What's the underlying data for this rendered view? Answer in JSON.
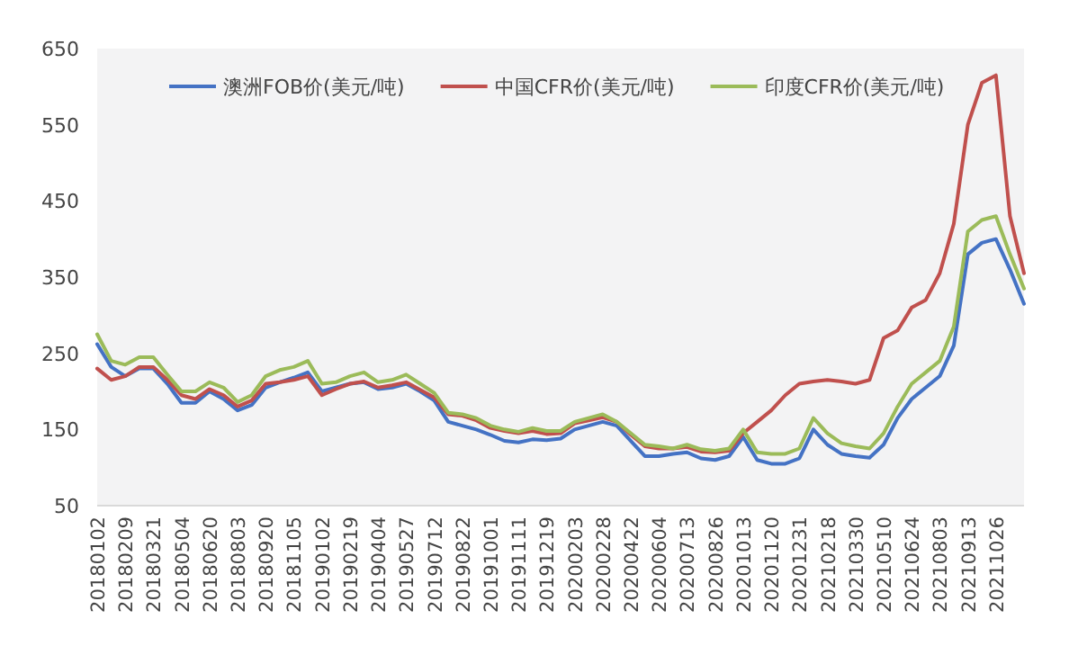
{
  "chart_data": {
    "type": "line",
    "categories": [
      "20180102",
      null,
      "20180209",
      null,
      "20180321",
      null,
      "20180504",
      null,
      "20180620",
      null,
      "20180803",
      null,
      "20180920",
      null,
      "20181105",
      null,
      "20190102",
      null,
      "20190219",
      null,
      "20190404",
      null,
      "20190527",
      null,
      "20190712",
      null,
      "20190822",
      null,
      "20191001",
      null,
      "20191111",
      null,
      "20191219",
      null,
      "20200203",
      null,
      "20200228",
      null,
      "20200422",
      null,
      "20200604",
      null,
      "20200713",
      null,
      "20200826",
      null,
      "20201013",
      null,
      "20201120",
      null,
      "20201231",
      null,
      "20210218",
      null,
      "20210330",
      null,
      "20210510",
      null,
      "20210624",
      null,
      "20210803",
      null,
      "20210913",
      null,
      "20211026",
      null,
      null
    ],
    "ylim": [
      50,
      650
    ],
    "yticks": [
      50,
      150,
      250,
      350,
      450,
      550,
      650
    ],
    "legend": "top",
    "marker": "none",
    "line_style": "solid",
    "series": [
      {
        "name": "澳洲FOB价(美元/吨)",
        "color": "#4472c4",
        "values": [
          262,
          232,
          220,
          230,
          230,
          210,
          185,
          185,
          200,
          190,
          175,
          182,
          205,
          212,
          218,
          225,
          200,
          205,
          210,
          212,
          203,
          205,
          210,
          200,
          188,
          160,
          155,
          150,
          143,
          135,
          133,
          137,
          136,
          138,
          150,
          155,
          160,
          155,
          135,
          115,
          115,
          118,
          120,
          112,
          110,
          115,
          140,
          110,
          105,
          105,
          112,
          150,
          130,
          118,
          115,
          113,
          130,
          165,
          190,
          205,
          220,
          260,
          380,
          395,
          400,
          360,
          315
        ]
      },
      {
        "name": "中国CFR价(美元/吨)",
        "color": "#c0504d",
        "values": [
          230,
          215,
          220,
          232,
          232,
          215,
          195,
          190,
          203,
          195,
          180,
          188,
          210,
          212,
          215,
          220,
          195,
          203,
          210,
          213,
          205,
          208,
          212,
          202,
          192,
          170,
          168,
          162,
          152,
          148,
          145,
          148,
          144,
          145,
          158,
          162,
          166,
          160,
          143,
          128,
          125,
          125,
          127,
          121,
          120,
          122,
          145,
          160,
          175,
          195,
          210,
          213,
          215,
          213,
          210,
          215,
          270,
          280,
          310,
          320,
          355,
          420,
          550,
          605,
          615,
          430,
          355
        ]
      },
      {
        "name": "印度CFR价(美元/吨)",
        "color": "#9bbb59",
        "values": [
          275,
          240,
          235,
          245,
          245,
          222,
          200,
          200,
          212,
          205,
          186,
          195,
          220,
          228,
          232,
          240,
          210,
          212,
          220,
          225,
          212,
          215,
          222,
          210,
          198,
          172,
          170,
          165,
          155,
          150,
          147,
          152,
          148,
          148,
          160,
          165,
          170,
          160,
          145,
          130,
          128,
          125,
          130,
          124,
          122,
          125,
          150,
          120,
          118,
          118,
          125,
          165,
          145,
          132,
          128,
          125,
          145,
          180,
          210,
          225,
          240,
          285,
          410,
          425,
          430,
          380,
          335
        ]
      }
    ]
  }
}
